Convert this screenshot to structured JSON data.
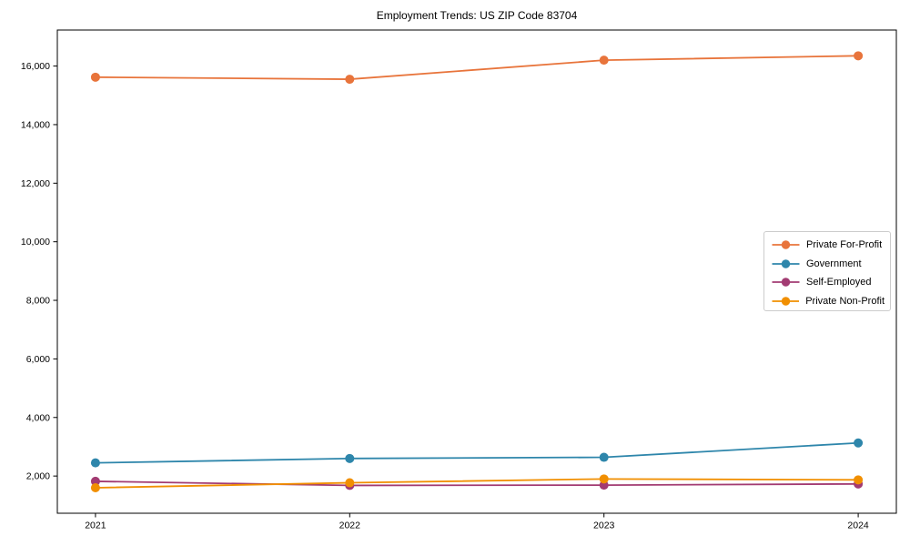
{
  "figure": {
    "title": "Employment Trends: US ZIP Code 83704"
  },
  "chart_data": {
    "type": "line",
    "title": "Employment Trends: US ZIP Code 83704",
    "xlabel": "",
    "ylabel": "",
    "grid": false,
    "legend_position": "center right",
    "x": [
      2021,
      2022,
      2023,
      2024
    ],
    "x_labels": [
      "2021",
      "2022",
      "2023",
      "2024"
    ],
    "xlim": [
      2020.85,
      2024.15
    ],
    "ylim": [
      730,
      17230
    ],
    "yticks": [
      {
        "value": 2000,
        "label": "2,000"
      },
      {
        "value": 4000,
        "label": "4,000"
      },
      {
        "value": 6000,
        "label": "6,000"
      },
      {
        "value": 8000,
        "label": "8,000"
      },
      {
        "value": 10000,
        "label": "10,000"
      },
      {
        "value": 12000,
        "label": "12,000"
      },
      {
        "value": 14000,
        "label": "14,000"
      },
      {
        "value": 16000,
        "label": "16,000"
      }
    ],
    "series": [
      {
        "name": "Private For-Profit",
        "color": "#E8743B",
        "values": [
          15620,
          15550,
          16200,
          16350
        ]
      },
      {
        "name": "Government",
        "color": "#2E86AB",
        "values": [
          2450,
          2600,
          2640,
          3130
        ]
      },
      {
        "name": "Self-Employed",
        "color": "#A23B72",
        "values": [
          1820,
          1680,
          1690,
          1730
        ]
      },
      {
        "name": "Private Non-Profit",
        "color": "#F18F01",
        "values": [
          1600,
          1770,
          1900,
          1870
        ]
      }
    ]
  }
}
